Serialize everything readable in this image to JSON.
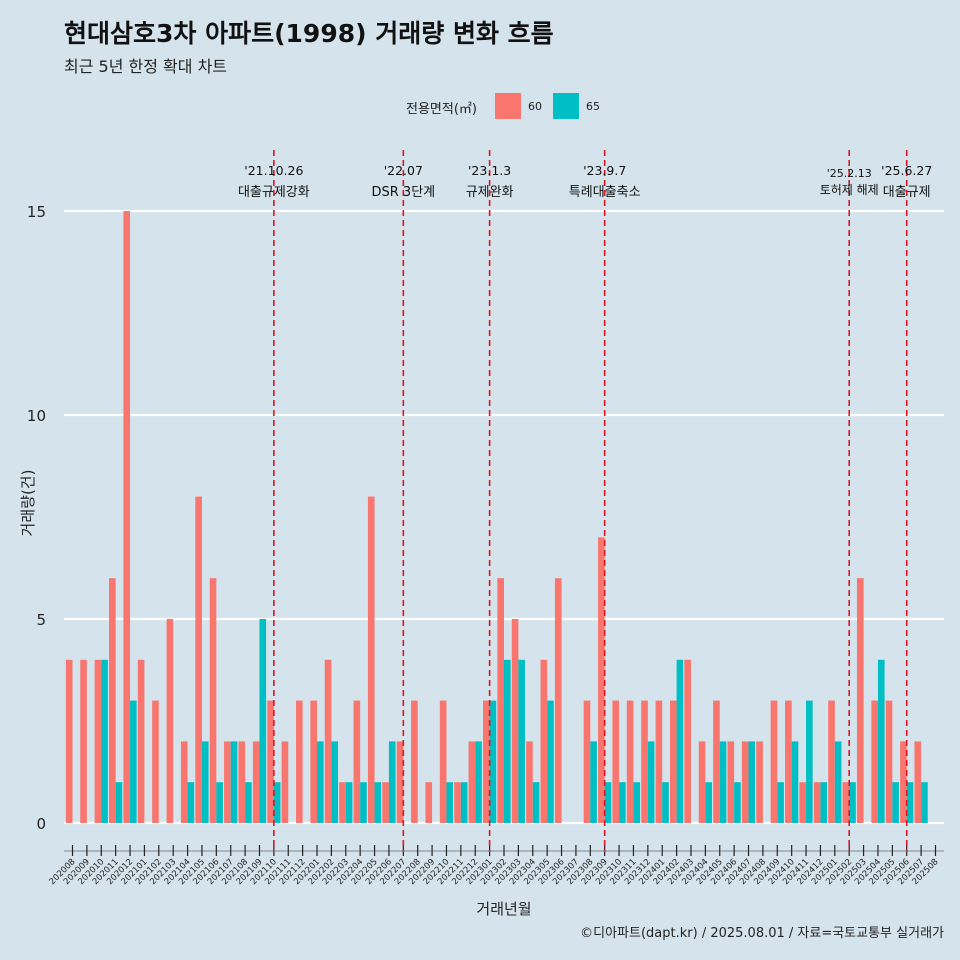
{
  "header": {
    "title": "현대삼호3차 아파트(1998) 거래량 변화 흐름",
    "subtitle": "최근 5년 한정 확대 차트"
  },
  "legend": {
    "title": "전용면적(㎡)",
    "items": [
      {
        "label": "60",
        "color": "#f8766d"
      },
      {
        "label": "65",
        "color": "#00bfc4"
      }
    ]
  },
  "caption": "©디아파트(dapt.kr) / 2025.08.01 / 자료=국토교통부 실거래가",
  "chart_data": {
    "type": "bar",
    "xlabel": "거래년월",
    "ylabel": "거래량(건)",
    "ylim": [
      0,
      15
    ],
    "yticks": [
      0,
      5,
      10,
      15
    ],
    "categories": [
      "202008",
      "202009",
      "202010",
      "202011",
      "202012",
      "202101",
      "202102",
      "202103",
      "202104",
      "202105",
      "202106",
      "202107",
      "202108",
      "202109",
      "202110",
      "202111",
      "202112",
      "202201",
      "202202",
      "202203",
      "202204",
      "202205",
      "202206",
      "202207",
      "202208",
      "202209",
      "202210",
      "202211",
      "202212",
      "202301",
      "202302",
      "202303",
      "202304",
      "202305",
      "202306",
      "202307",
      "202308",
      "202309",
      "202310",
      "202311",
      "202312",
      "202401",
      "202402",
      "202403",
      "202404",
      "202405",
      "202406",
      "202407",
      "202408",
      "202409",
      "202410",
      "202411",
      "202412",
      "202501",
      "202502",
      "202503",
      "202504",
      "202505",
      "202506",
      "202507",
      "202508"
    ],
    "series": [
      {
        "name": "60",
        "color": "#f8766d",
        "values": [
          4,
          4,
          4,
          6,
          15,
          4,
          3,
          5,
          2,
          8,
          6,
          2,
          2,
          2,
          3,
          2,
          3,
          3,
          4,
          1,
          3,
          8,
          1,
          2,
          3,
          1,
          3,
          1,
          2,
          3,
          6,
          5,
          2,
          4,
          6,
          0,
          3,
          7,
          3,
          3,
          3,
          3,
          3,
          4,
          2,
          3,
          2,
          2,
          2,
          3,
          3,
          1,
          1,
          3,
          1,
          6,
          3,
          3,
          2,
          2,
          0
        ]
      },
      {
        "name": "65",
        "color": "#00bfc4",
        "values": [
          0,
          0,
          4,
          1,
          3,
          0,
          0,
          0,
          1,
          2,
          1,
          2,
          1,
          5,
          1,
          0,
          0,
          2,
          2,
          1,
          1,
          1,
          2,
          0,
          0,
          0,
          1,
          1,
          2,
          3,
          4,
          4,
          1,
          3,
          0,
          0,
          2,
          1,
          1,
          1,
          2,
          1,
          4,
          0,
          1,
          2,
          1,
          2,
          0,
          1,
          2,
          3,
          1,
          2,
          1,
          0,
          4,
          1,
          1,
          1,
          0
        ]
      }
    ],
    "grid": true,
    "legend_position": "top",
    "annotations": [
      {
        "date": "'21.10.26",
        "text": "대출규제강화",
        "at": "202110"
      },
      {
        "date": "'22.07",
        "text": "DSR 3단계",
        "at": "202207"
      },
      {
        "date": "'23.1.3",
        "text": "규제완화",
        "at": "202301"
      },
      {
        "date": "'23.9.7",
        "text": "특례대출축소",
        "at": "202309"
      },
      {
        "date": "'25.2.13",
        "text": "토허제 해제",
        "at": "202502"
      },
      {
        "date": "'25.6.27",
        "text": "대출규제",
        "at": "202506"
      }
    ]
  }
}
